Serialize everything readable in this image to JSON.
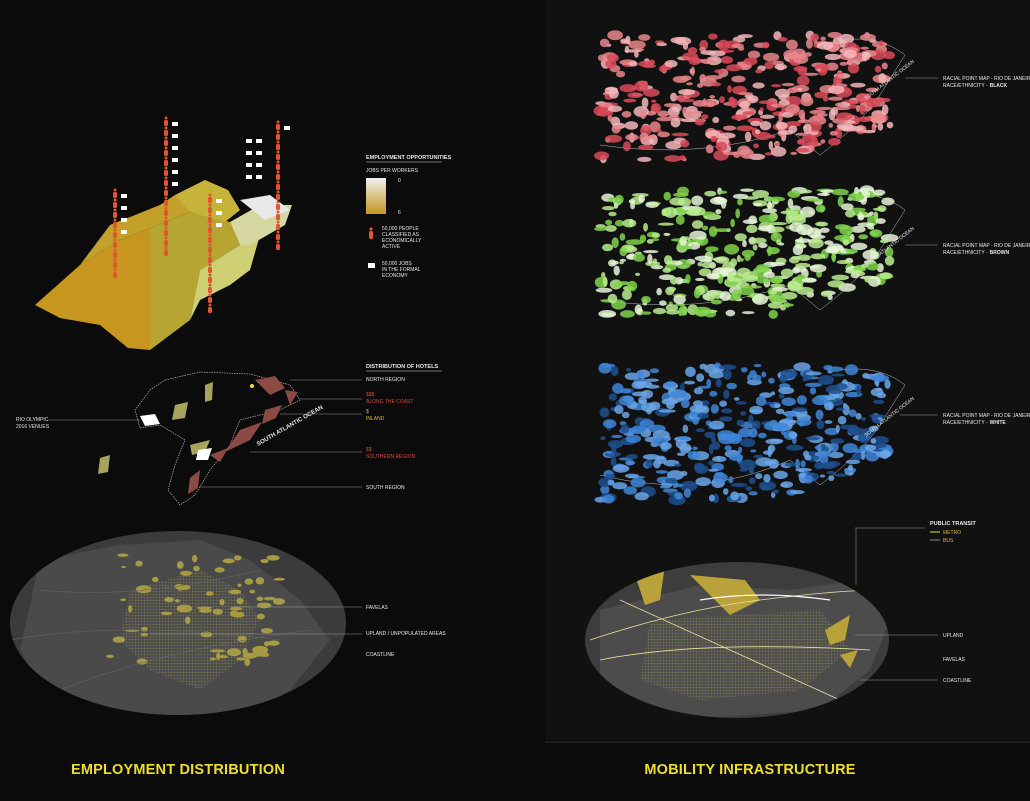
{
  "left": {
    "title": "EMPLOYMENT DISTRIBUTION",
    "employment_legend": {
      "title": "EMPLOYMENT OPPORTUNITIES",
      "scale_label": "JOBS PER WORKERS",
      "scale_min": "0",
      "scale_max": "6",
      "people": [
        "50,000 PEOPLE",
        "CLASSIFIED AS",
        "ECONOMICALLY",
        "ACTIVE"
      ],
      "jobs": [
        "50,000 JOBS",
        "IN THE FORMAL",
        "ECONOMY"
      ]
    },
    "hotels": {
      "title": "DISTRIBUTION OF HOTELS",
      "north": "NORTH REGION",
      "coast": [
        "$$$",
        "ALONG THE COAST"
      ],
      "inland": [
        "$",
        "INLAND"
      ],
      "southern": [
        "$$",
        "SOUTHERN REGION"
      ],
      "south": "SOUTH REGION",
      "venues": [
        "RIO OLYMPIC",
        "2016 VENUES"
      ],
      "ocean": "SOUTH ATLANTIC OCEAN"
    },
    "land": {
      "favelas": "FAVELAS",
      "upland": "UPLAND / UNPOPULATED AREAS",
      "coastline": "COASTLINE"
    }
  },
  "right": {
    "title": "MOBILITY INFRASTRUCTURE",
    "racial": {
      "heading": "RACIAL POINT MAP - RIO DE JANEIRO",
      "prefix": "RACE/ETHNICITY -",
      "groups": [
        "BLACK",
        "BROWN",
        "WHITE"
      ],
      "ocean": "SOUTH ATLANTIC OCEAN"
    },
    "transit": {
      "title": "PUBLIC TRANSIT",
      "metro": "METRO",
      "bus": "BUS"
    },
    "land": {
      "upland": "UPLAND",
      "favelas": "FAVELAS",
      "coastline": "COASTLINE"
    }
  }
}
